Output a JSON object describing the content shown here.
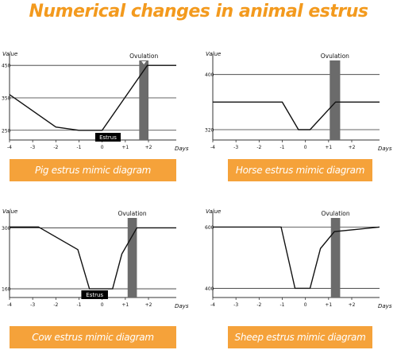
{
  "page_title": "Numerical changes in animal estrus",
  "colors": {
    "title": "#f39a1e",
    "caption_bg": "#f5a23a",
    "line": "#111111",
    "grid": "#333333",
    "ovulation_band": "#6b6b6b",
    "estrus_box": "#000000"
  },
  "chart_data": [
    {
      "type": "line",
      "id": "pig",
      "caption": "Pig estrus mimic diagram",
      "ylabel": "Value",
      "xlabel": "Days",
      "x_ticks": [
        "-4",
        "-3",
        "-2",
        "-1",
        "0",
        "+1",
        "+2"
      ],
      "y_ticks": [
        450,
        350,
        250
      ],
      "ylim": [
        220,
        475
      ],
      "xlim": [
        -4,
        3.2
      ],
      "series": [
        {
          "x": [
            -4,
            -2,
            -1,
            0,
            1.95,
            3.2
          ],
          "y": [
            360,
            260,
            250,
            250,
            450,
            450
          ]
        }
      ],
      "estrus": {
        "label": "Estrus",
        "x_start": -0.3,
        "x_end": 0.8
      },
      "ovulation": {
        "label": "Ovulation",
        "x_start": 1.6,
        "x_end": 2.0,
        "marker": true
      },
      "grid": "horizontal"
    },
    {
      "type": "line",
      "id": "horse",
      "caption": "Horse estrus mimic diagram",
      "ylabel": "Value",
      "xlabel": "Days",
      "x_ticks": [
        "-4",
        "-3",
        "-2",
        "-1",
        "0",
        "+1",
        "+2"
      ],
      "y_ticks": [
        400,
        320
      ],
      "ylim": [
        305,
        425
      ],
      "xlim": [
        -4,
        3.2
      ],
      "series": [
        {
          "x": [
            -4,
            -1.0,
            -0.3,
            0.2,
            1.3,
            3.2
          ],
          "y": [
            360,
            360,
            320,
            320,
            360,
            360
          ]
        }
      ],
      "estrus": null,
      "ovulation": {
        "label": "Ovulation",
        "x_start": 1.05,
        "x_end": 1.5,
        "marker": false
      },
      "grid": "horizontal"
    },
    {
      "type": "line",
      "id": "cow",
      "caption": "Cow estrus mimic diagram",
      "ylabel": "Value",
      "xlabel": "Days",
      "x_ticks": [
        "-4",
        "-3",
        "-2",
        "-1",
        "0",
        "+1",
        "+2"
      ],
      "y_ticks": [
        300,
        160
      ],
      "ylim": [
        140,
        330
      ],
      "xlim": [
        -4,
        3.2
      ],
      "series": [
        {
          "x": [
            -4,
            -2.75,
            -1.05,
            -0.55,
            0.45,
            0.85,
            1.5,
            3.2
          ],
          "y": [
            302,
            302,
            250,
            160,
            160,
            240,
            300,
            300
          ]
        }
      ],
      "estrus": {
        "label": "Estrus",
        "x_start": -0.9,
        "x_end": 0.25
      },
      "ovulation": {
        "label": "Ovulation",
        "x_start": 1.1,
        "x_end": 1.5,
        "marker": false
      },
      "grid": "horizontal"
    },
    {
      "type": "line",
      "id": "sheep",
      "caption": "Sheep estrus mimic diagram",
      "ylabel": "Value",
      "xlabel": "Days",
      "x_ticks": [
        "-4",
        "-3",
        "-2",
        "-1",
        "0",
        "+1",
        "+2"
      ],
      "y_ticks": [
        600,
        400
      ],
      "ylim": [
        370,
        640
      ],
      "xlim": [
        -4,
        3.2
      ],
      "series": [
        {
          "x": [
            -4,
            -1.05,
            -0.45,
            0.2,
            0.65,
            1.25,
            3.2
          ],
          "y": [
            600,
            600,
            400,
            400,
            530,
            585,
            600
          ]
        }
      ],
      "estrus": null,
      "ovulation": {
        "label": "Ovulation",
        "x_start": 1.1,
        "x_end": 1.5,
        "marker": false
      },
      "grid": "horizontal"
    }
  ]
}
